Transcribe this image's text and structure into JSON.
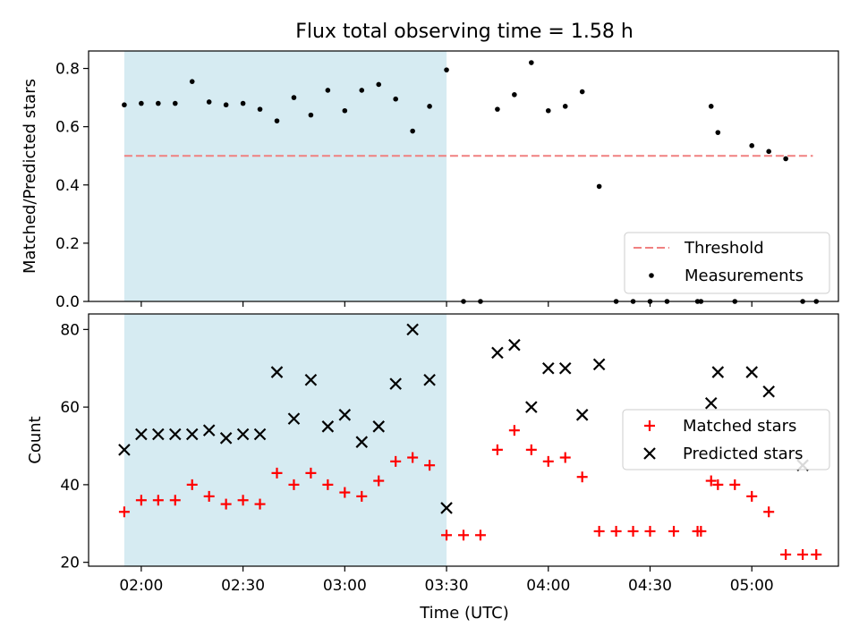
{
  "chart_data": {
    "title": "Flux total observing time = 1.58 h",
    "xlabel": "Time (UTC)",
    "x_ticks": [
      "02:00",
      "02:30",
      "03:00",
      "03:30",
      "04:00",
      "04:30",
      "05:00"
    ],
    "shaded_interval": [
      "01:55",
      "03:30"
    ],
    "shade_color": "#add8e6",
    "panels": [
      {
        "type": "scatter",
        "ylabel": "Matched/Predicted stars",
        "ylim": [
          0,
          0.86
        ],
        "yticks": [
          "0.0",
          "0.2",
          "0.4",
          "0.6",
          "0.8"
        ],
        "threshold": {
          "value": 0.5,
          "x_range": [
            "01:55",
            "05:18"
          ],
          "color": "#f08080"
        },
        "legend": {
          "position": "lower-right",
          "entries": [
            "Threshold",
            "Measurements"
          ]
        },
        "series": [
          {
            "name": "Measurements",
            "color": "#000000",
            "times": [
              "01:55",
              "02:00",
              "02:05",
              "02:10",
              "02:15",
              "02:20",
              "02:25",
              "02:30",
              "02:35",
              "02:40",
              "02:45",
              "02:50",
              "02:55",
              "03:00",
              "03:05",
              "03:10",
              "03:15",
              "03:20",
              "03:25",
              "03:30",
              "03:35",
              "03:40",
              "03:45",
              "03:50",
              "03:55",
              "04:00",
              "04:05",
              "04:10",
              "04:15",
              "04:20",
              "04:25",
              "04:30",
              "04:35",
              "04:44",
              "04:45",
              "04:48",
              "04:50",
              "04:55",
              "05:00",
              "05:05",
              "05:10",
              "05:15",
              "05:19"
            ],
            "values": [
              0.675,
              0.68,
              0.68,
              0.68,
              0.755,
              0.685,
              0.675,
              0.68,
              0.66,
              0.62,
              0.7,
              0.64,
              0.725,
              0.655,
              0.725,
              0.745,
              0.695,
              0.585,
              0.67,
              0.795,
              0.0,
              0.0,
              0.66,
              0.71,
              0.82,
              0.655,
              0.67,
              0.72,
              0.395,
              0.0,
              0.0,
              0.0,
              0.0,
              0.0,
              0.0,
              0.67,
              0.58,
              0.0,
              0.535,
              0.515,
              0.49,
              0.0,
              0.0
            ]
          }
        ]
      },
      {
        "type": "scatter",
        "ylabel": "Count",
        "ylim": [
          19,
          84
        ],
        "yticks": [
          "20",
          "40",
          "60",
          "80"
        ],
        "legend": {
          "position": "center-right",
          "entries": [
            "Matched stars",
            "Predicted stars"
          ]
        },
        "series": [
          {
            "name": "Matched stars",
            "marker": "+",
            "color": "#ff0000",
            "times": [
              "01:55",
              "02:00",
              "02:05",
              "02:10",
              "02:15",
              "02:20",
              "02:25",
              "02:30",
              "02:35",
              "02:40",
              "02:45",
              "02:50",
              "02:55",
              "03:00",
              "03:05",
              "03:10",
              "03:15",
              "03:20",
              "03:25",
              "03:30",
              "03:35",
              "03:40",
              "03:45",
              "03:50",
              "03:55",
              "04:00",
              "04:05",
              "04:10",
              "04:15",
              "04:20",
              "04:25",
              "04:30",
              "04:37",
              "04:44",
              "04:45",
              "04:48",
              "04:50",
              "04:55",
              "05:00",
              "05:05",
              "05:10",
              "05:15",
              "05:19"
            ],
            "values": [
              33,
              36,
              36,
              36,
              40,
              37,
              35,
              36,
              35,
              43,
              40,
              43,
              40,
              38,
              37,
              41,
              46,
              47,
              45,
              27,
              27,
              27,
              49,
              54,
              49,
              46,
              47,
              42,
              28,
              28,
              28,
              28,
              28,
              28,
              28,
              41,
              40,
              40,
              37,
              33,
              22,
              22,
              22
            ]
          },
          {
            "name": "Predicted stars",
            "marker": "x",
            "color": "#000000",
            "times": [
              "01:55",
              "02:00",
              "02:05",
              "02:10",
              "02:15",
              "02:20",
              "02:25",
              "02:30",
              "02:35",
              "02:40",
              "02:45",
              "02:50",
              "02:55",
              "03:00",
              "03:05",
              "03:10",
              "03:15",
              "03:20",
              "03:25",
              "03:30",
              "03:45",
              "03:50",
              "03:55",
              "04:00",
              "04:05",
              "04:10",
              "04:15",
              "04:48",
              "04:50",
              "05:00",
              "05:05",
              "05:15"
            ],
            "values": [
              49,
              53,
              53,
              53,
              53,
              54,
              52,
              53,
              53,
              69,
              57,
              67,
              55,
              58,
              51,
              55,
              66,
              80,
              67,
              34,
              74,
              76,
              60,
              70,
              70,
              58,
              71,
              61,
              69,
              69,
              64,
              45
            ]
          }
        ]
      }
    ]
  }
}
